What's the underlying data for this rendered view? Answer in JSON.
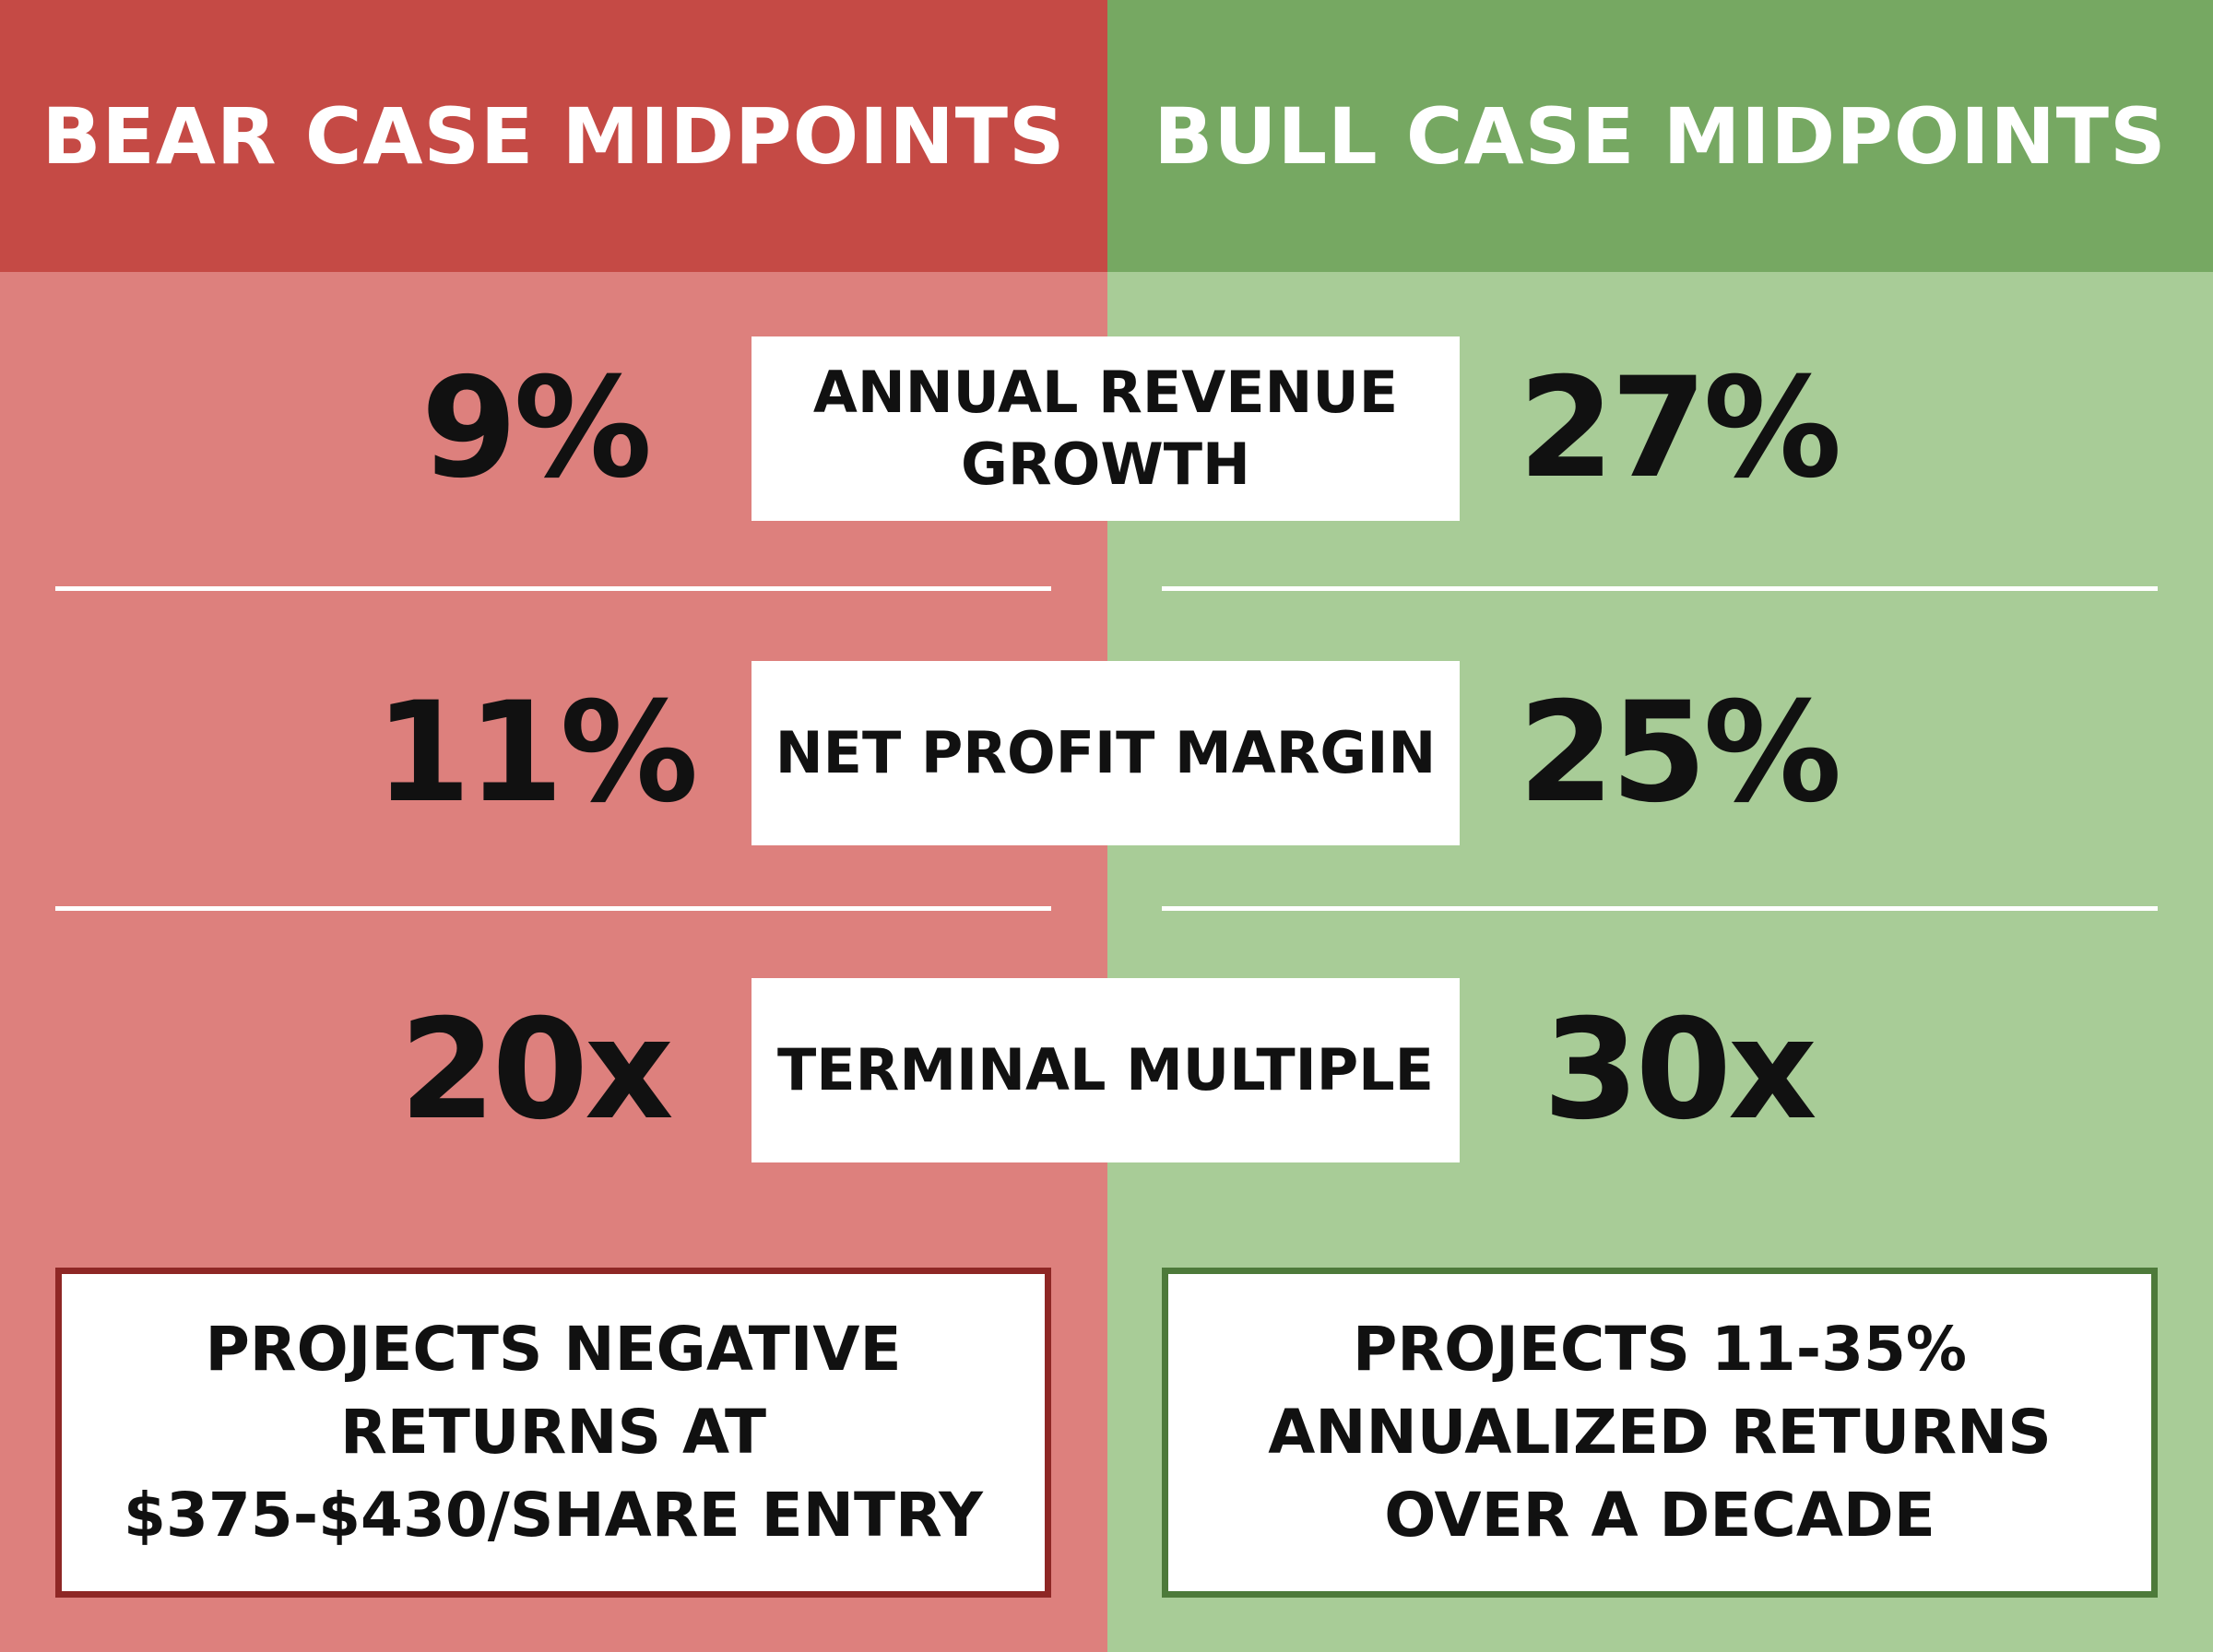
{
  "bear": {
    "header": "BEAR CASE MIDPOINTS",
    "revenue_growth": "9%",
    "net_profit_margin": "11%",
    "terminal_multiple": "20x",
    "conclusion_lines": [
      "PROJECTS NEGATIVE",
      "RETURNS AT",
      "$375-$430/SHARE ENTRY"
    ]
  },
  "bull": {
    "header": "BULL CASE MIDPOINTS",
    "revenue_growth": "27%",
    "net_profit_margin": "25%",
    "terminal_multiple": "30x",
    "conclusion_lines": [
      "PROJECTS 11-35%",
      "ANNUALIZED RETURNS",
      "OVER A DECADE"
    ]
  },
  "metrics": {
    "revenue_growth_lines": [
      "ANNUAL REVENUE",
      "GROWTH"
    ],
    "net_profit_margin": "NET PROFIT MARGIN",
    "terminal_multiple": "TERMINAL MULTIPLE"
  },
  "colors": {
    "bear_header": "#c54a45",
    "bear_body": "#dd807d",
    "bull_header": "#76a862",
    "bull_body": "#a8cc97",
    "bear_border": "#8e2725",
    "bull_border": "#4d7a3a"
  }
}
